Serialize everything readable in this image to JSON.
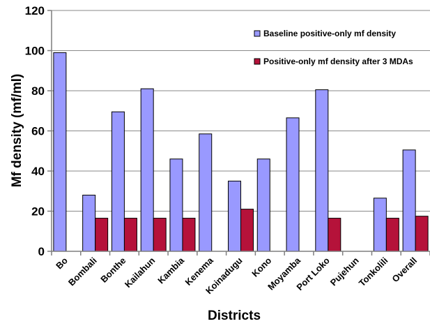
{
  "chart_data": {
    "type": "bar",
    "title": "",
    "xlabel": "Districts",
    "ylabel": "Mf density (mf/ml)",
    "ylim": [
      0,
      120
    ],
    "yticks": [
      0,
      20,
      40,
      60,
      80,
      100,
      120
    ],
    "grid": true,
    "legend_position": "top-right",
    "categories": [
      "Bo",
      "Bombali",
      "Bonthe",
      "Kailahun",
      "Kambia",
      "Kenema",
      "Koinadugu",
      "Kono",
      "Moyamba",
      "Port Loko",
      "Pujehun",
      "Tonkolili",
      "Overall"
    ],
    "series": [
      {
        "name": "Baseline positive-only mf density",
        "color": "#9999ff",
        "values": [
          99,
          28,
          69.5,
          81,
          46,
          58.5,
          35,
          46,
          66.5,
          80.5,
          null,
          26.5,
          50.5
        ]
      },
      {
        "name": "Positive-only mf density after 3 MDAs",
        "color": "#b5123a",
        "values": [
          null,
          16.5,
          16.5,
          16.5,
          16.5,
          null,
          21,
          null,
          null,
          16.5,
          null,
          16.5,
          17.5
        ]
      }
    ]
  }
}
